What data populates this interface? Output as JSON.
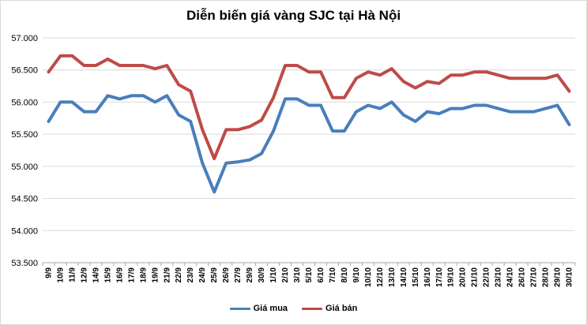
{
  "chart_data": {
    "type": "line",
    "title": "Diễn biến giá vàng SJC tại Hà Nội",
    "xlabel": "",
    "ylabel": "",
    "ylim": [
      53500,
      57000
    ],
    "y_tick_step": 500,
    "y_tick_labels": [
      "53.500",
      "54.000",
      "54.500",
      "55.000",
      "55.500",
      "56.000",
      "56.500",
      "57.000"
    ],
    "grid": "horizontal",
    "legend_position": "bottom",
    "categories": [
      "9/9",
      "10/9",
      "11/9",
      "12/9",
      "14/9",
      "15/9",
      "16/9",
      "17/9",
      "18/9",
      "19/9",
      "21/9",
      "22/9",
      "23/9",
      "24/9",
      "25/9",
      "26/9",
      "27/9",
      "29/9",
      "30/9",
      "1/10",
      "2/10",
      "3/10",
      "5/10",
      "6/10",
      "7/10",
      "8/10",
      "9/10",
      "10/10",
      "12/10",
      "13/10",
      "14/10",
      "15/10",
      "16/10",
      "17/10",
      "19/10",
      "20/10",
      "21/10",
      "22/10",
      "23/10",
      "24/10",
      "26/10",
      "27/10",
      "28/10",
      "29/10",
      "30/10"
    ],
    "series": [
      {
        "name": "Giá mua",
        "color": "#4a7ebb",
        "values": [
          55700,
          56000,
          56000,
          55850,
          55850,
          56100,
          56050,
          56100,
          56100,
          56000,
          56100,
          55800,
          55700,
          55050,
          54600,
          55050,
          55070,
          55100,
          55200,
          55550,
          56050,
          56050,
          55950,
          55950,
          55550,
          55550,
          55850,
          55950,
          55900,
          56000,
          55800,
          55700,
          55850,
          55820,
          55900,
          55900,
          55950,
          55950,
          55900,
          55850,
          55850,
          55850,
          55900,
          55950,
          55650
        ]
      },
      {
        "name": "Giá bán",
        "color": "#be4b48",
        "values": [
          56470,
          56720,
          56720,
          56570,
          56570,
          56670,
          56570,
          56570,
          56570,
          56520,
          56570,
          56270,
          56170,
          55570,
          55120,
          55570,
          55570,
          55620,
          55720,
          56070,
          56570,
          56570,
          56470,
          56470,
          56070,
          56070,
          56370,
          56470,
          56420,
          56520,
          56320,
          56220,
          56320,
          56290,
          56420,
          56420,
          56470,
          56470,
          56420,
          56370,
          56370,
          56370,
          56370,
          56420,
          56170
        ]
      }
    ]
  }
}
